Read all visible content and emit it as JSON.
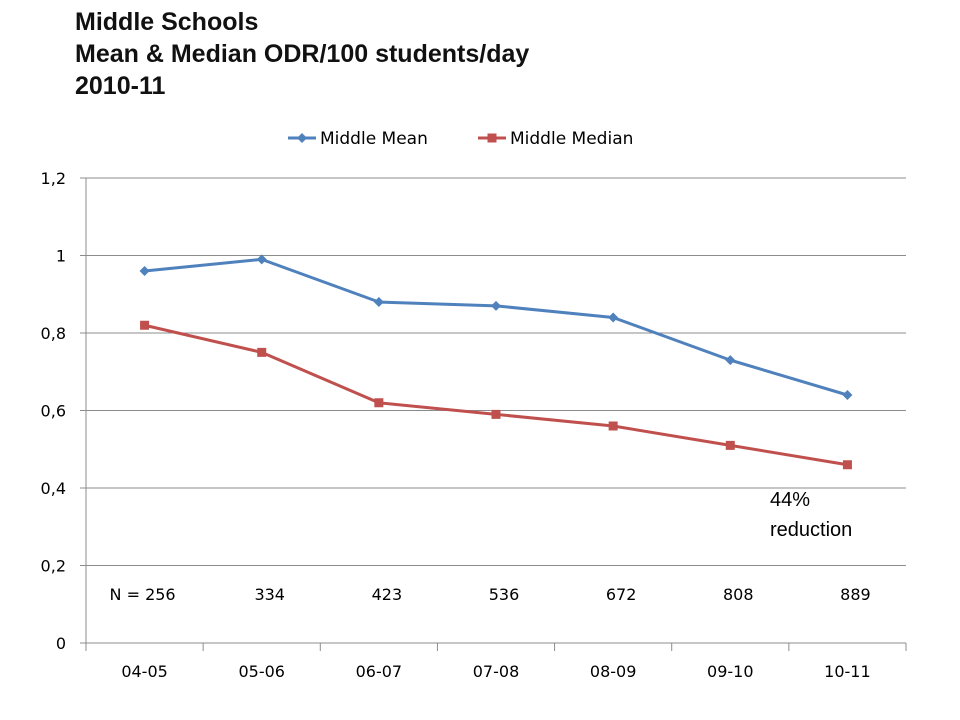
{
  "title_lines": [
    "Middle Schools",
    "Mean & Median ODR/100 students/day",
    "2010-11"
  ],
  "chart_data": {
    "type": "line",
    "categories": [
      "04-05",
      "05-06",
      "06-07",
      "07-08",
      "08-09",
      "09-10",
      "10-11"
    ],
    "series": [
      {
        "name": "Middle Mean",
        "values": [
          0.96,
          0.99,
          0.88,
          0.87,
          0.84,
          0.73,
          0.64
        ],
        "color": "#4F81BD",
        "marker": "diamond"
      },
      {
        "name": "Middle Median",
        "values": [
          0.82,
          0.75,
          0.62,
          0.59,
          0.56,
          0.51,
          0.46
        ],
        "color": "#C0504D",
        "marker": "square"
      }
    ],
    "ylim": [
      0,
      1.2
    ],
    "yticks": [
      "0",
      "0,2",
      "0,4",
      "0,6",
      "0,8",
      "1",
      "1,2"
    ],
    "grid": true,
    "legend": "top",
    "n_labels": [
      "N = 256",
      "334",
      "423",
      "536",
      "672",
      "808",
      "889"
    ],
    "annotations": [
      "44%",
      "reduction"
    ]
  }
}
